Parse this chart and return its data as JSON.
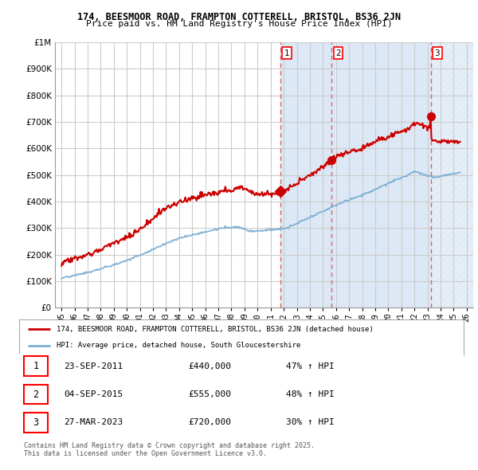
{
  "title1": "174, BEESMOOR ROAD, FRAMPTON COTTERELL, BRISTOL, BS36 2JN",
  "title2": "Price paid vs. HM Land Registry's House Price Index (HPI)",
  "ytick_values": [
    0,
    100000,
    200000,
    300000,
    400000,
    500000,
    600000,
    700000,
    800000,
    900000,
    1000000
  ],
  "xmin": 1994.5,
  "xmax": 2026.5,
  "ymin": 0,
  "ymax": 1000000,
  "red_color": "#cc0000",
  "blue_color": "#7bafd4",
  "vline_color": "#e06060",
  "vspan_color": "#dce8f5",
  "sale_dates": [
    2011.73,
    2015.67,
    2023.24
  ],
  "sale_prices": [
    440000,
    555000,
    720000
  ],
  "sale_labels": [
    "1",
    "2",
    "3"
  ],
  "legend_label_red": "174, BEESMOOR ROAD, FRAMPTON COTTERELL, BRISTOL, BS36 2JN (detached house)",
  "legend_label_blue": "HPI: Average price, detached house, South Gloucestershire",
  "table_rows": [
    [
      "1",
      "23-SEP-2011",
      "£440,000",
      "47% ↑ HPI"
    ],
    [
      "2",
      "04-SEP-2015",
      "£555,000",
      "48% ↑ HPI"
    ],
    [
      "3",
      "27-MAR-2023",
      "£720,000",
      "30% ↑ HPI"
    ]
  ],
  "footnote1": "Contains HM Land Registry data © Crown copyright and database right 2025.",
  "footnote2": "This data is licensed under the Open Government Licence v3.0.",
  "bg_color": "#ffffff",
  "plot_bg_color": "#ffffff",
  "grid_color": "#cccccc"
}
